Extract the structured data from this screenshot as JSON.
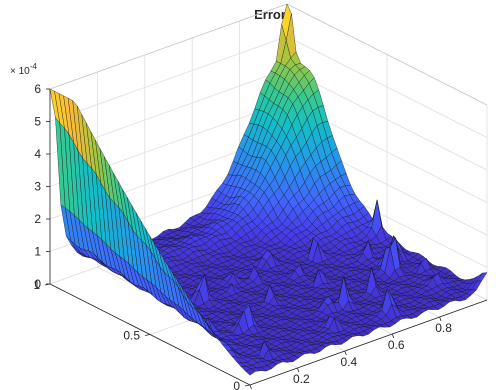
{
  "chart_data": {
    "type": "surface",
    "title": "Error",
    "colormap": "parula",
    "grid": true,
    "box": "back-planes",
    "xlim": [
      0,
      1
    ],
    "ylim": [
      0,
      1
    ],
    "zlim": [
      0,
      6
    ],
    "z_exponent_label": "× 10",
    "z_exponent_power": "-4",
    "x_ticks": [
      0,
      0.2,
      0.4,
      0.6,
      0.8
    ],
    "x_tick_labels": [
      "0",
      "0.2",
      "0.4",
      "0.6",
      "0.8"
    ],
    "y_ticks": [
      0,
      0.5,
      1
    ],
    "y_tick_labels": [
      "0",
      "0.5",
      "1"
    ],
    "z_ticks": [
      0,
      1,
      2,
      3,
      4,
      5,
      6
    ],
    "z_tick_labels": [
      "0",
      "1",
      "2",
      "3",
      "4",
      "5",
      "6"
    ],
    "peaks": [
      {
        "x": 1.0,
        "y": 1.0,
        "z": 5.9,
        "description": "sharp spike at far corner"
      },
      {
        "x": 0.0,
        "y": 1.0,
        "z": 5.3,
        "description": "high ridge at left edge"
      },
      {
        "x": 1.0,
        "y": 0.0,
        "z": 0.8,
        "description": "small spike at right corner"
      }
    ],
    "baseline_z": 0.3
  }
}
